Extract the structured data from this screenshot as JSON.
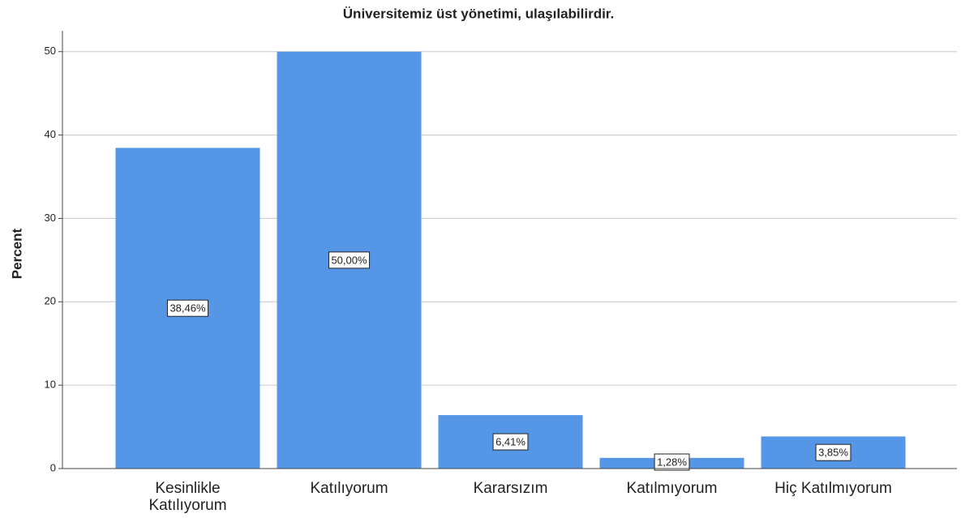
{
  "chart_data": {
    "type": "bar",
    "title": "Üniversitemiz üst yönetimi, ulaşılabilirdir.",
    "y_label": "Percent",
    "categories": [
      "Kesinlikle Katılıyorum",
      "Katılıyorum",
      "Kararsızım",
      "Katılmıyorum",
      "Hiç Katılmıyorum"
    ],
    "values": [
      38.46,
      50.0,
      6.41,
      1.28,
      3.85
    ],
    "value_labels": [
      "38,46%",
      "50,00%",
      "6,41%",
      "1,28%",
      "3,85%"
    ],
    "color": "#5596e6",
    "ylim": [
      0,
      52.5
    ],
    "yticks": [
      0,
      10,
      20,
      30,
      40,
      50
    ],
    "grid": true
  }
}
